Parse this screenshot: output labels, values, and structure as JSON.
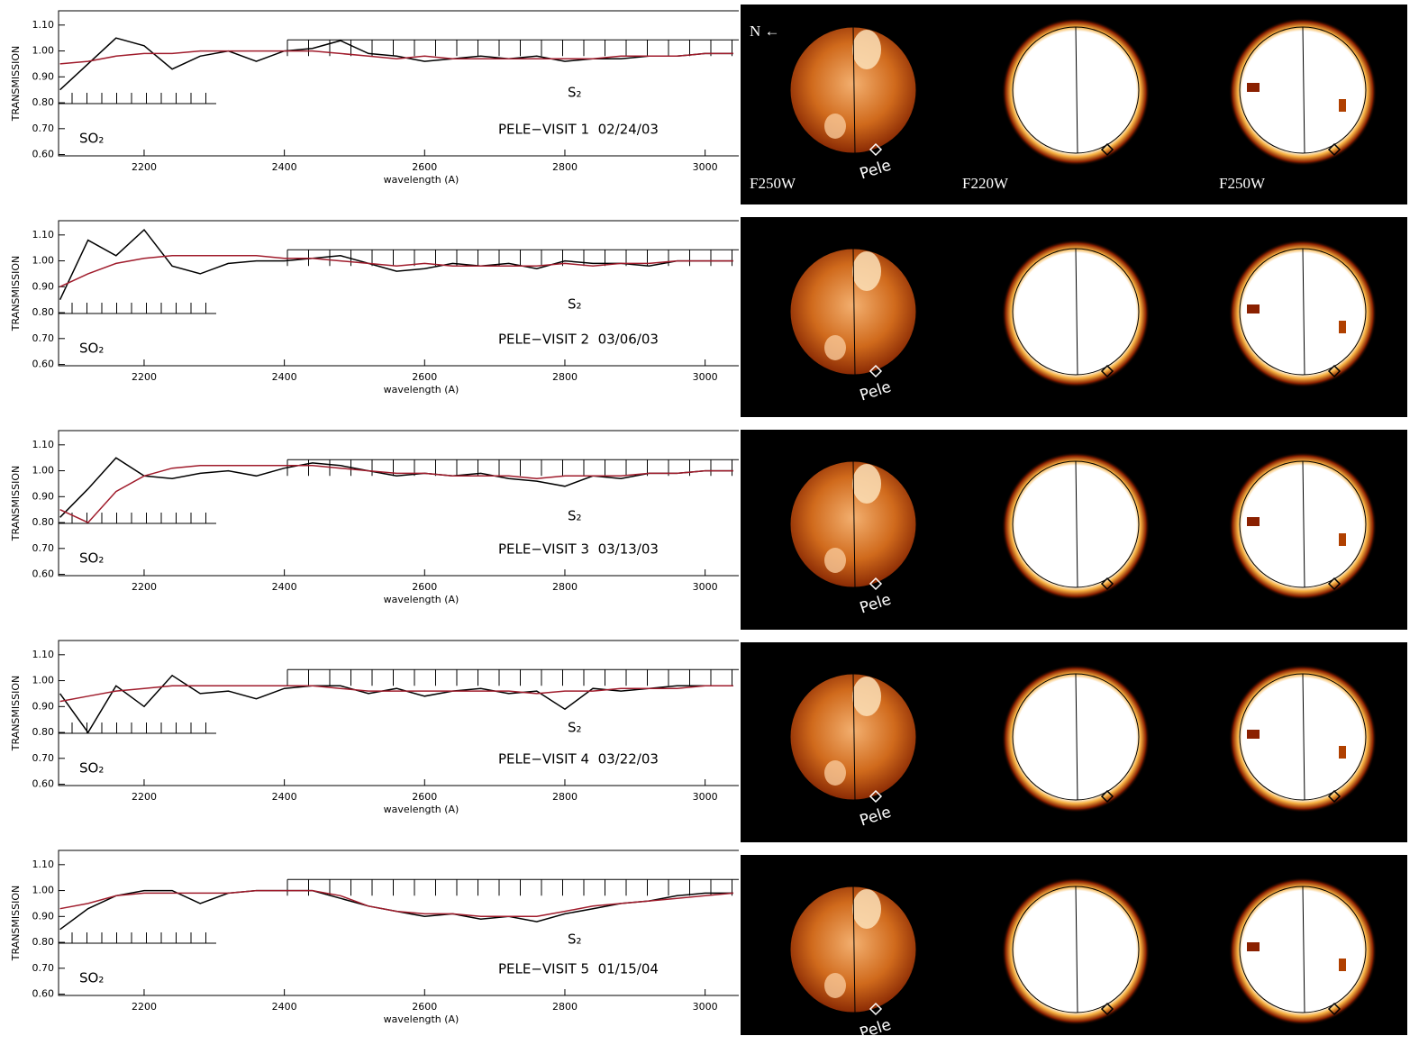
{
  "chart_data": [
    {
      "type": "line",
      "ylabel": "TRANSMISSION",
      "xlabel": "wavelength (A)",
      "annotations": [
        "SO₂",
        "S₂",
        "PELE−VISIT 1  02/24/03"
      ],
      "x": [
        2080,
        2120,
        2160,
        2200,
        2240,
        2280,
        2320,
        2360,
        2400,
        2440,
        2480,
        2520,
        2560,
        2600,
        2640,
        2680,
        2720,
        2760,
        2800,
        2840,
        2880,
        2920,
        2960,
        3000,
        3040
      ],
      "series": [
        {
          "color": "#000000",
          "values": [
            0.85,
            0.95,
            1.05,
            1.02,
            0.93,
            0.98,
            1.0,
            0.96,
            1.0,
            1.01,
            1.04,
            0.99,
            0.98,
            0.96,
            0.97,
            0.98,
            0.97,
            0.98,
            0.96,
            0.97,
            0.97,
            0.98,
            0.98,
            0.99,
            0.99
          ]
        },
        {
          "color": "#a01c2c",
          "values": [
            0.95,
            0.96,
            0.98,
            0.99,
            0.99,
            1.0,
            1.0,
            1.0,
            1.0,
            1.0,
            0.99,
            0.98,
            0.97,
            0.98,
            0.97,
            0.97,
            0.97,
            0.97,
            0.97,
            0.97,
            0.98,
            0.98,
            0.98,
            0.99,
            0.99
          ]
        }
      ],
      "xlim": [
        2078,
        3048
      ],
      "ylim": [
        0.595,
        1.155
      ],
      "xticks": [
        2200,
        2400,
        2600,
        2800,
        3000
      ],
      "yticks": [
        {
          "value": 0.6,
          "label": "0.60"
        },
        {
          "value": 0.7,
          "label": "0.70"
        },
        {
          "value": 0.8,
          "label": "0.80"
        },
        {
          "value": 0.9,
          "label": "0.90"
        },
        {
          "value": 1.0,
          "label": "1.00"
        },
        {
          "value": 1.1,
          "label": "1.10"
        }
      ]
    },
    {
      "type": "line",
      "ylabel": "TRANSMISSION",
      "xlabel": "wavelength (A)",
      "annotations": [
        "SO₂",
        "S₂",
        "PELE−VISIT 2  03/06/03"
      ],
      "x": [
        2080,
        2120,
        2160,
        2200,
        2240,
        2280,
        2320,
        2360,
        2400,
        2440,
        2480,
        2520,
        2560,
        2600,
        2640,
        2680,
        2720,
        2760,
        2800,
        2840,
        2880,
        2920,
        2960,
        3000,
        3040
      ],
      "series": [
        {
          "color": "#000000",
          "values": [
            0.85,
            1.08,
            1.02,
            1.12,
            0.98,
            0.95,
            0.99,
            1.0,
            1.0,
            1.01,
            1.02,
            0.99,
            0.96,
            0.97,
            0.99,
            0.98,
            0.99,
            0.97,
            1.0,
            0.99,
            0.99,
            0.98,
            1.0,
            1.0,
            1.0
          ]
        },
        {
          "color": "#a01c2c",
          "values": [
            0.9,
            0.95,
            0.99,
            1.01,
            1.02,
            1.02,
            1.02,
            1.02,
            1.01,
            1.01,
            1.0,
            0.99,
            0.98,
            0.99,
            0.98,
            0.98,
            0.98,
            0.98,
            0.99,
            0.98,
            0.99,
            0.99,
            1.0,
            1.0,
            1.0
          ]
        }
      ],
      "xlim": [
        2078,
        3048
      ],
      "ylim": [
        0.595,
        1.155
      ],
      "xticks": [
        2200,
        2400,
        2600,
        2800,
        3000
      ],
      "yticks": [
        {
          "value": 0.6,
          "label": "0.60"
        },
        {
          "value": 0.7,
          "label": "0.70"
        },
        {
          "value": 0.8,
          "label": "0.80"
        },
        {
          "value": 0.9,
          "label": "0.90"
        },
        {
          "value": 1.0,
          "label": "1.00"
        },
        {
          "value": 1.1,
          "label": "1.10"
        }
      ]
    },
    {
      "type": "line",
      "ylabel": "TRANSMISSION",
      "xlabel": "wavelength (A)",
      "annotations": [
        "SO₂",
        "S₂",
        "PELE−VISIT 3  03/13/03"
      ],
      "x": [
        2080,
        2120,
        2160,
        2200,
        2240,
        2280,
        2320,
        2360,
        2400,
        2440,
        2480,
        2520,
        2560,
        2600,
        2640,
        2680,
        2720,
        2760,
        2800,
        2840,
        2880,
        2920,
        2960,
        3000,
        3040
      ],
      "series": [
        {
          "color": "#000000",
          "values": [
            0.82,
            0.93,
            1.05,
            0.98,
            0.97,
            0.99,
            1.0,
            0.98,
            1.01,
            1.03,
            1.02,
            1.0,
            0.98,
            0.99,
            0.98,
            0.99,
            0.97,
            0.96,
            0.94,
            0.98,
            0.97,
            0.99,
            0.99,
            1.0,
            1.0
          ]
        },
        {
          "color": "#a01c2c",
          "values": [
            0.85,
            0.8,
            0.92,
            0.98,
            1.01,
            1.02,
            1.02,
            1.02,
            1.02,
            1.02,
            1.01,
            1.0,
            0.99,
            0.99,
            0.98,
            0.98,
            0.98,
            0.97,
            0.98,
            0.98,
            0.98,
            0.99,
            0.99,
            1.0,
            1.0
          ]
        }
      ],
      "xlim": [
        2078,
        3048
      ],
      "ylim": [
        0.595,
        1.155
      ],
      "xticks": [
        2200,
        2400,
        2600,
        2800,
        3000
      ],
      "yticks": [
        {
          "value": 0.6,
          "label": "0.60"
        },
        {
          "value": 0.7,
          "label": "0.70"
        },
        {
          "value": 0.8,
          "label": "0.80"
        },
        {
          "value": 0.9,
          "label": "0.90"
        },
        {
          "value": 1.0,
          "label": "1.00"
        },
        {
          "value": 1.1,
          "label": "1.10"
        }
      ]
    },
    {
      "type": "line",
      "ylabel": "TRANSMISSION",
      "xlabel": "wavelength (A)",
      "annotations": [
        "SO₂",
        "S₂",
        "PELE−VISIT 4  03/22/03"
      ],
      "x": [
        2080,
        2120,
        2160,
        2200,
        2240,
        2280,
        2320,
        2360,
        2400,
        2440,
        2480,
        2520,
        2560,
        2600,
        2640,
        2680,
        2720,
        2760,
        2800,
        2840,
        2880,
        2920,
        2960,
        3000,
        3040
      ],
      "series": [
        {
          "color": "#000000",
          "values": [
            0.95,
            0.8,
            0.98,
            0.9,
            1.02,
            0.95,
            0.96,
            0.93,
            0.97,
            0.98,
            0.98,
            0.95,
            0.97,
            0.94,
            0.96,
            0.97,
            0.95,
            0.96,
            0.89,
            0.97,
            0.96,
            0.97,
            0.98,
            0.98,
            0.98
          ]
        },
        {
          "color": "#a01c2c",
          "values": [
            0.92,
            0.94,
            0.96,
            0.97,
            0.98,
            0.98,
            0.98,
            0.98,
            0.98,
            0.98,
            0.97,
            0.96,
            0.96,
            0.96,
            0.96,
            0.96,
            0.96,
            0.95,
            0.96,
            0.96,
            0.97,
            0.97,
            0.97,
            0.98,
            0.98
          ]
        }
      ],
      "xlim": [
        2078,
        3048
      ],
      "ylim": [
        0.595,
        1.155
      ],
      "xticks": [
        2200,
        2400,
        2600,
        2800,
        3000
      ],
      "yticks": [
        {
          "value": 0.6,
          "label": "0.60"
        },
        {
          "value": 0.7,
          "label": "0.70"
        },
        {
          "value": 0.8,
          "label": "0.80"
        },
        {
          "value": 0.9,
          "label": "0.90"
        },
        {
          "value": 1.0,
          "label": "1.00"
        },
        {
          "value": 1.1,
          "label": "1.10"
        }
      ]
    },
    {
      "type": "line",
      "ylabel": "TRANSMISSION",
      "xlabel": "wavelength (A)",
      "annotations": [
        "SO₂",
        "S₂",
        "PELE−VISIT 5  01/15/04"
      ],
      "x": [
        2080,
        2120,
        2160,
        2200,
        2240,
        2280,
        2320,
        2360,
        2400,
        2440,
        2480,
        2520,
        2560,
        2600,
        2640,
        2680,
        2720,
        2760,
        2800,
        2840,
        2880,
        2920,
        2960,
        3000,
        3040
      ],
      "series": [
        {
          "color": "#000000",
          "values": [
            0.85,
            0.93,
            0.98,
            1.0,
            1.0,
            0.95,
            0.99,
            1.0,
            1.0,
            1.0,
            0.97,
            0.94,
            0.92,
            0.9,
            0.91,
            0.89,
            0.9,
            0.88,
            0.91,
            0.93,
            0.95,
            0.96,
            0.98,
            0.99,
            0.99
          ]
        },
        {
          "color": "#a01c2c",
          "values": [
            0.93,
            0.95,
            0.98,
            0.99,
            0.99,
            0.99,
            0.99,
            1.0,
            1.0,
            1.0,
            0.98,
            0.94,
            0.92,
            0.91,
            0.91,
            0.9,
            0.9,
            0.9,
            0.92,
            0.94,
            0.95,
            0.96,
            0.97,
            0.98,
            0.99
          ]
        }
      ],
      "xlim": [
        2078,
        3048
      ],
      "ylim": [
        0.595,
        1.155
      ],
      "xticks": [
        2200,
        2400,
        2600,
        2800,
        3000
      ],
      "yticks": [
        {
          "value": 0.6,
          "label": "0.60"
        },
        {
          "value": 0.7,
          "label": "0.70"
        },
        {
          "value": 0.8,
          "label": "0.80"
        },
        {
          "value": 0.9,
          "label": "0.90"
        },
        {
          "value": 1.0,
          "label": "1.00"
        },
        {
          "value": 1.1,
          "label": "1.10"
        }
      ]
    }
  ],
  "images": {
    "north": "N ←",
    "filters": [
      "F250W",
      "F220W",
      "F250W"
    ],
    "site_labels": [
      "Pele",
      "Pele",
      "Pele",
      "Pele",
      "Pele"
    ]
  }
}
